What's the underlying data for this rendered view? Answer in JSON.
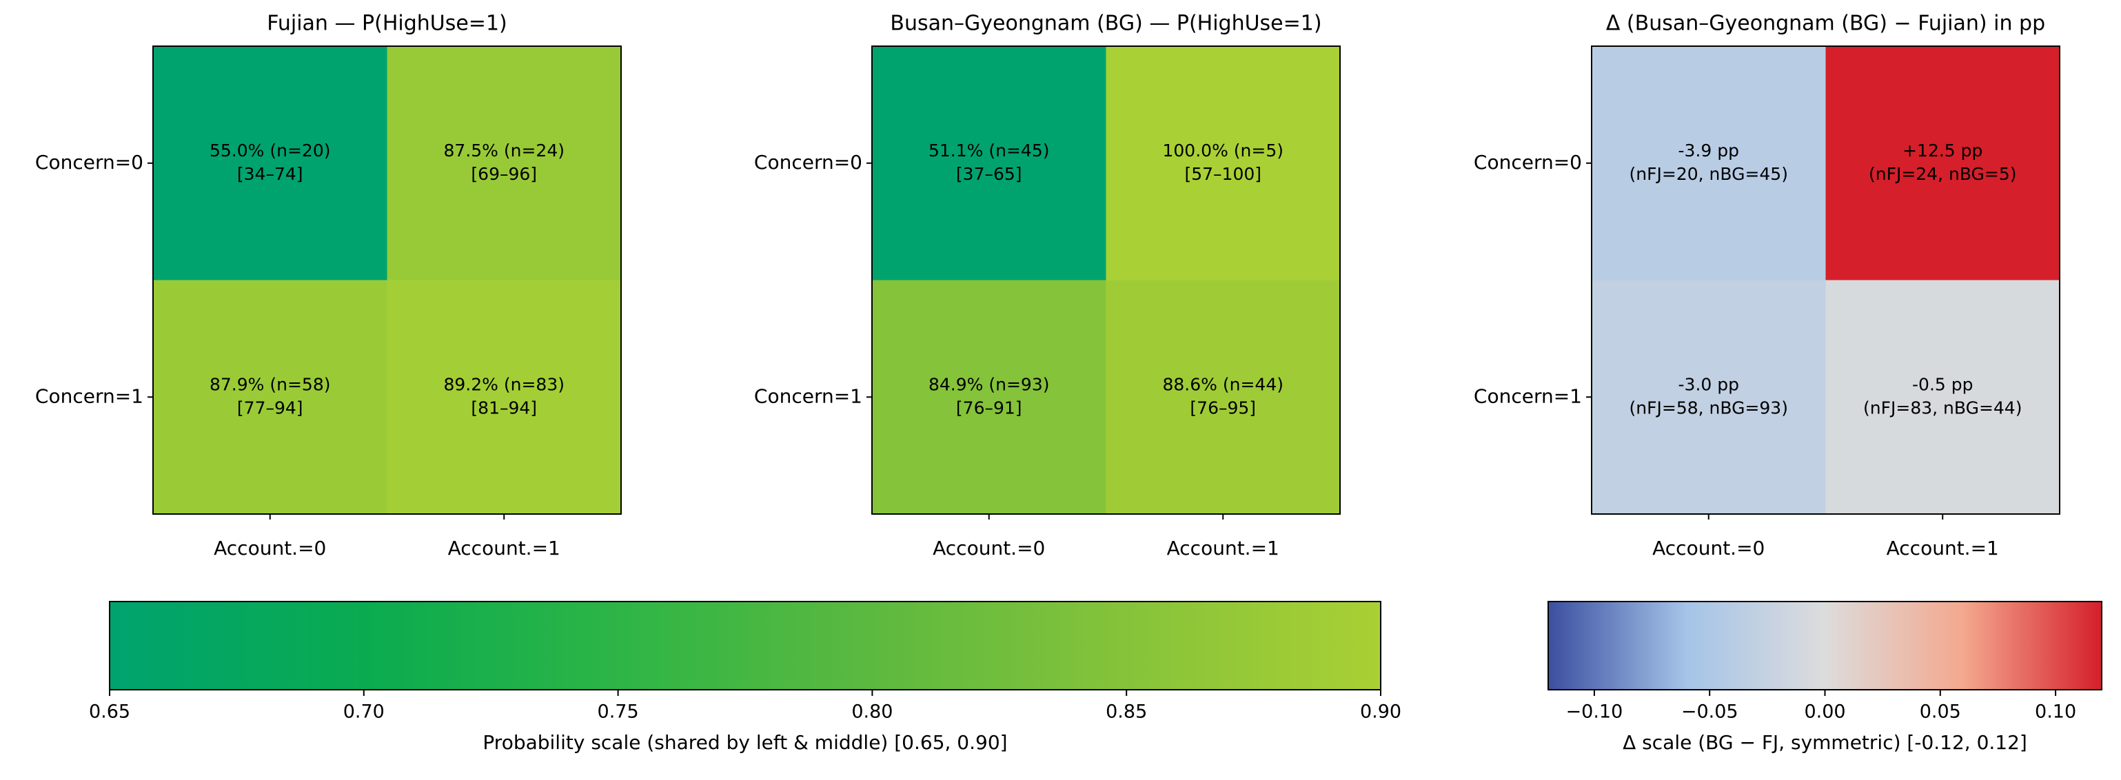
{
  "chart_data": [
    {
      "type": "heatmap",
      "title": "Fujian — P(HighUse=1)",
      "x_categories": [
        "Account.=0",
        "Account.=1"
      ],
      "y_categories": [
        "Concern=0",
        "Concern=1"
      ],
      "values": [
        [
          0.55,
          0.875
        ],
        [
          0.879,
          0.892
        ]
      ],
      "value_labels": [
        [
          "55.0%  (n=20)",
          "87.5%  (n=24)"
        ],
        [
          "87.9%  (n=58)",
          "89.2%  (n=83)"
        ]
      ],
      "interval_labels": [
        [
          "[34–74]",
          "[69–96]"
        ],
        [
          "[77–94]",
          "[81–94]"
        ]
      ]
    },
    {
      "type": "heatmap",
      "title": "Busan–Gyeongnam (BG) — P(HighUse=1)",
      "x_categories": [
        "Account.=0",
        "Account.=1"
      ],
      "y_categories": [
        "Concern=0",
        "Concern=1"
      ],
      "values": [
        [
          0.511,
          1.0
        ],
        [
          0.849,
          0.886
        ]
      ],
      "value_labels": [
        [
          "51.1%  (n=45)",
          "100.0%  (n=5)"
        ],
        [
          "84.9%  (n=93)",
          "88.6%  (n=44)"
        ]
      ],
      "interval_labels": [
        [
          "[37–65]",
          "[57–100]"
        ],
        [
          "[76–91]",
          "[76–95]"
        ]
      ]
    },
    {
      "type": "heatmap",
      "title": "Δ (Busan–Gyeongnam (BG) − Fujian) in pp",
      "x_categories": [
        "Account.=0",
        "Account.=1"
      ],
      "y_categories": [
        "Concern=0",
        "Concern=1"
      ],
      "values": [
        [
          -0.039,
          0.125
        ],
        [
          -0.03,
          -0.005
        ]
      ],
      "value_labels": [
        [
          "-3.9 pp",
          "+12.5 pp"
        ],
        [
          "-3.0 pp",
          "-0.5 pp"
        ]
      ],
      "interval_labels": [
        [
          "(nFJ=20, nBG=45)",
          "(nFJ=24, nBG=5)"
        ],
        [
          "(nFJ=58, nBG=93)",
          "(nFJ=83, nBG=44)"
        ]
      ]
    },
    {
      "type": "colorbar",
      "label": "Probability scale (shared by left & middle)  [0.65, 0.90]",
      "xlim": [
        0.65,
        0.9
      ],
      "xticks": [
        0.65,
        {
          "value": 0.7,
          "label": "0.70"
        },
        0.75,
        {
          "value": 0.8,
          "label": "0.80"
        },
        0.85,
        {
          "value": 0.9,
          "label": "0.90"
        }
      ],
      "colors": [
        "#00a36e",
        "#0aab50",
        "#2db546",
        "#5cb93f",
        "#86c33a",
        "#a9d034"
      ]
    },
    {
      "type": "colorbar",
      "label": "Δ scale (BG − FJ, symmetric)  [-0.12, 0.12]",
      "xlim": [
        -0.12,
        0.12
      ],
      "xticks": [
        {
          "value": -0.1,
          "label": "−0.10"
        },
        {
          "value": -0.05,
          "label": "−0.05"
        },
        {
          "value": 0,
          "label": "0.00"
        },
        0.05,
        {
          "value": 0.1,
          "label": "0.10"
        }
      ],
      "colors": [
        "#3b4fa0",
        "#a5c4e8",
        "#dcdcdc",
        "#f4a88e",
        "#d51f2a"
      ]
    }
  ]
}
